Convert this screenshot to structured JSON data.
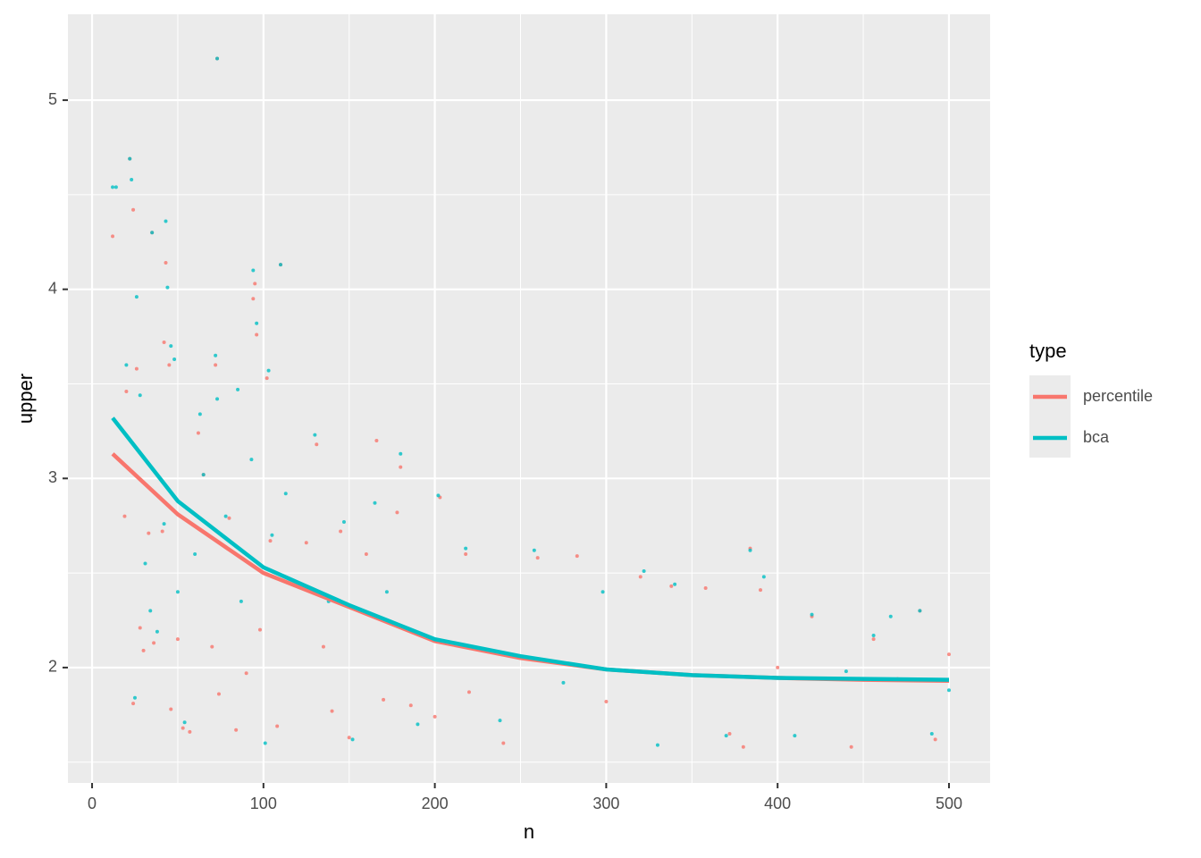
{
  "chart_data": {
    "type": "scatter",
    "x_label": "n",
    "y_label": "upper",
    "xlim": [
      -14.1,
      524
    ],
    "ylim": [
      1.39,
      5.454
    ],
    "xticks": [
      0,
      100,
      200,
      300,
      400,
      500
    ],
    "yticks": [
      2,
      3,
      4,
      5
    ],
    "x_minor_grid": [
      50,
      150,
      250,
      350,
      450
    ],
    "y_minor_grid": [
      1.5,
      2.5,
      3.5,
      4.5
    ],
    "grid": true,
    "legend_title": "type",
    "legend_position": "right",
    "series": [
      {
        "name": "percentile",
        "color": "#F8766D",
        "x": [
          12,
          19,
          20,
          22,
          24,
          24,
          26,
          28,
          30,
          33,
          35,
          36,
          41,
          42,
          43,
          45,
          46,
          50,
          53,
          57,
          62,
          65,
          70,
          72,
          73,
          74,
          80,
          84,
          90,
          94,
          95,
          96,
          98,
          102,
          104,
          108,
          110,
          125,
          131,
          135,
          140,
          145,
          150,
          160,
          166,
          170,
          178,
          180,
          186,
          200,
          203,
          218,
          220,
          240,
          260,
          283,
          300,
          320,
          338,
          358,
          372,
          380,
          384,
          390,
          400,
          420,
          443,
          456,
          470,
          483,
          492,
          500
        ],
        "values": [
          4.28,
          2.8,
          3.46,
          4.69,
          4.42,
          1.81,
          3.58,
          2.21,
          2.09,
          2.71,
          4.3,
          2.13,
          2.72,
          3.72,
          4.14,
          3.6,
          1.78,
          2.15,
          1.68,
          1.66,
          3.24,
          3.02,
          2.11,
          3.6,
          5.22,
          1.86,
          2.79,
          1.67,
          1.97,
          3.95,
          4.03,
          3.76,
          2.2,
          3.53,
          2.67,
          1.69,
          4.13,
          2.66,
          3.18,
          2.11,
          1.77,
          2.72,
          1.63,
          2.6,
          3.2,
          1.83,
          2.82,
          3.06,
          1.8,
          1.74,
          2.9,
          2.6,
          1.87,
          1.6,
          2.58,
          2.59,
          1.82,
          2.48,
          2.43,
          2.42,
          1.65,
          1.58,
          2.63,
          2.41,
          2.0,
          2.27,
          1.58,
          2.15,
          1.94,
          2.3,
          1.62,
          2.07
        ],
        "trend_x": [
          12,
          50,
          100,
          150,
          200,
          250,
          300,
          350,
          400,
          450,
          500
        ],
        "trend_values": [
          3.13,
          2.81,
          2.5,
          2.32,
          2.14,
          2.05,
          1.99,
          1.96,
          1.945,
          1.935,
          1.93
        ]
      },
      {
        "name": "bca",
        "color": "#00BFC4",
        "x": [
          12,
          14,
          20,
          22,
          23,
          25,
          26,
          28,
          31,
          34,
          35,
          38,
          42,
          43,
          44,
          46,
          48,
          50,
          54,
          60,
          63,
          65,
          72,
          73,
          73,
          78,
          85,
          87,
          93,
          94,
          96,
          101,
          103,
          105,
          110,
          113,
          130,
          138,
          147,
          152,
          165,
          172,
          180,
          190,
          202,
          218,
          238,
          258,
          275,
          298,
          322,
          330,
          340,
          370,
          384,
          392,
          410,
          420,
          440,
          456,
          466,
          483,
          490,
          500
        ],
        "values": [
          4.54,
          4.54,
          3.6,
          4.69,
          4.58,
          1.84,
          3.96,
          3.44,
          2.55,
          2.3,
          4.3,
          2.19,
          2.76,
          4.36,
          4.01,
          3.7,
          3.63,
          2.4,
          1.71,
          2.6,
          3.34,
          3.02,
          3.65,
          3.42,
          5.22,
          2.8,
          3.47,
          2.35,
          3.1,
          4.1,
          3.82,
          1.6,
          3.57,
          2.7,
          4.13,
          2.92,
          3.23,
          2.35,
          2.77,
          1.62,
          2.87,
          2.4,
          3.13,
          1.7,
          2.91,
          2.63,
          1.72,
          2.62,
          1.92,
          2.4,
          2.51,
          1.59,
          2.44,
          1.64,
          2.62,
          2.48,
          1.64,
          2.28,
          1.98,
          2.17,
          2.27,
          2.3,
          1.65,
          1.88
        ],
        "trend_x": [
          12,
          50,
          100,
          150,
          200,
          250,
          300,
          350,
          400,
          450,
          500
        ],
        "trend_values": [
          3.32,
          2.88,
          2.53,
          2.33,
          2.15,
          2.06,
          1.99,
          1.96,
          1.945,
          1.94,
          1.935
        ]
      }
    ]
  }
}
